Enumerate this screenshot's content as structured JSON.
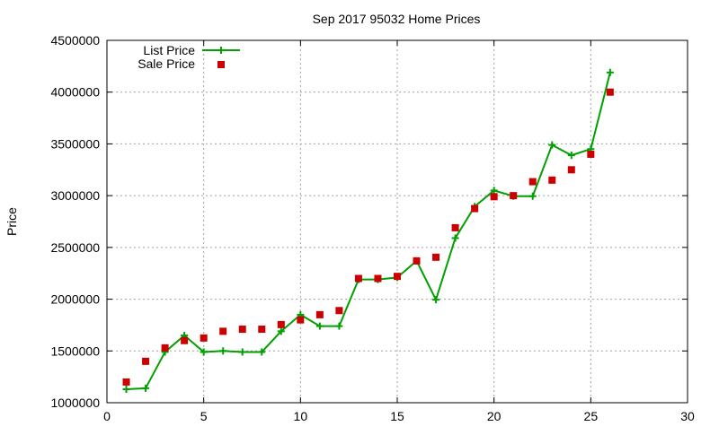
{
  "chart_data": {
    "type": "line",
    "title": "Sep 2017 95032 Home Prices",
    "xlabel": "",
    "ylabel": "Price",
    "xlim": [
      0,
      30
    ],
    "ylim": [
      1000000,
      4500000
    ],
    "x_ticks": [
      0,
      5,
      10,
      15,
      20,
      25,
      30
    ],
    "x_tick_labels": [
      "0",
      "5",
      "10",
      "15",
      "20",
      "25",
      "30"
    ],
    "y_ticks": [
      1000000,
      1500000,
      2000000,
      2500000,
      3000000,
      3500000,
      4000000,
      4500000
    ],
    "y_tick_labels": [
      "1000000",
      "1500000",
      "2000000",
      "2500000",
      "3000000",
      "3500000",
      "4000000",
      "4500000"
    ],
    "grid": true,
    "legend_position": "top-left",
    "series": [
      {
        "name": "List Price",
        "style": "line-with-plus-markers",
        "color": "#00a000",
        "x": [
          1,
          2,
          3,
          4,
          5,
          6,
          7,
          8,
          9,
          10,
          11,
          12,
          13,
          14,
          15,
          16,
          17,
          18,
          19,
          20,
          21,
          22,
          23,
          24,
          25,
          26
        ],
        "values": [
          1130000,
          1140000,
          1490000,
          1650000,
          1490000,
          1500000,
          1490000,
          1490000,
          1690000,
          1850000,
          1740000,
          1740000,
          2190000,
          2190000,
          2210000,
          2370000,
          1995000,
          2590000,
          2895000,
          3050000,
          2995000,
          2995000,
          3490000,
          3390000,
          3450000,
          4190000
        ]
      },
      {
        "name": "Sale Price",
        "style": "square-markers",
        "color": "#cc0000",
        "x": [
          1,
          2,
          3,
          4,
          5,
          6,
          7,
          8,
          9,
          10,
          11,
          12,
          13,
          14,
          15,
          16,
          17,
          18,
          19,
          20,
          21,
          22,
          23,
          24,
          25,
          26
        ],
        "values": [
          1200000,
          1400000,
          1530000,
          1600000,
          1625000,
          1690000,
          1710000,
          1710000,
          1755000,
          1800000,
          1850000,
          1890000,
          2200000,
          2200000,
          2220000,
          2370000,
          2405000,
          2690000,
          2875000,
          2990000,
          3000000,
          3135000,
          3150000,
          3250000,
          3400000,
          4000000
        ]
      }
    ]
  }
}
